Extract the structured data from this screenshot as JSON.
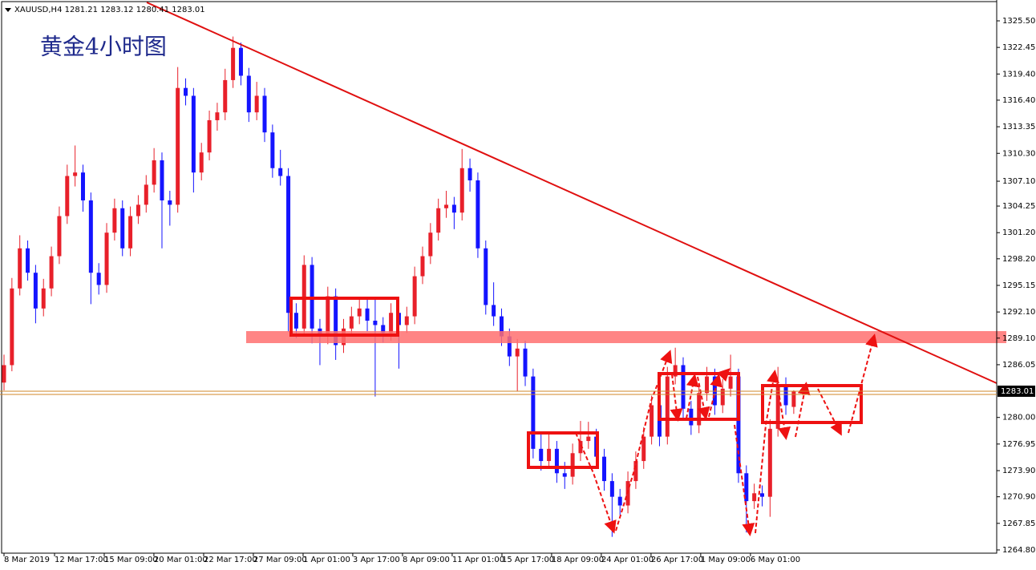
{
  "chart_data": {
    "type": "candlestick",
    "symbol": "XAUUSD,H4",
    "title": "黄金4小时图",
    "up_color": "#e8202a",
    "down_color": "#1414ff",
    "price_line_color": "#d0872a",
    "open": [
      1284.0,
      1286.0,
      1294.8,
      1299.4,
      1296.6,
      1292.5,
      1294.8,
      1298.5,
      1303.1,
      1307.7,
      1308.1,
      1304.9,
      1296.6,
      1295.2,
      1301.2,
      1304.0,
      1299.4,
      1303.1,
      1304.4,
      1306.7,
      1309.5,
      1304.9,
      1304.4,
      1317.8,
      1316.9,
      1308.1,
      1310.4,
      1314.1,
      1315.0,
      1318.7,
      1322.4,
      1319.2,
      1315.0,
      1316.9,
      1312.7,
      1308.6,
      1307.7,
      1292.0,
      1290.2,
      1297.5,
      1290.2,
      1289.3,
      1293.9,
      1288.3,
      1290.2,
      1291.6,
      1292.5,
      1291.1,
      1290.6,
      1289.7,
      1292.0,
      1290.6,
      1291.6,
      1296.2,
      1298.5,
      1301.2,
      1304.0,
      1304.4,
      1303.5,
      1308.6,
      1307.2,
      1299.4,
      1292.9,
      1291.6,
      1289.3,
      1287.0,
      1287.9,
      1284.7,
      1276.4,
      1275.0,
      1276.4,
      1273.6,
      1273.2,
      1275.9,
      1277.3,
      1277.8,
      1275.5,
      1272.7,
      1270.9,
      1269.9,
      1272.7,
      1275.0,
      1277.8,
      1281.4,
      1277.8,
      1284.7,
      1286.0,
      1281.0,
      1279.1,
      1282.8,
      1284.7,
      1281.4,
      1283.3,
      1284.7,
      1273.6,
      1270.4,
      1271.3,
      1270.9,
      1278.7,
      1283.7,
      1281.21
    ],
    "high": [
      1287.2,
      1296.0,
      1300.9,
      1300.3,
      1297.5,
      1295.9,
      1299.6,
      1304.2,
      1309.0,
      1311.2,
      1309.0,
      1305.8,
      1297.7,
      1302.3,
      1305.1,
      1304.9,
      1304.2,
      1305.5,
      1307.8,
      1310.9,
      1310.4,
      1306.0,
      1320.2,
      1318.9,
      1317.8,
      1311.5,
      1315.2,
      1316.1,
      1320.0,
      1323.7,
      1323.0,
      1320.1,
      1318.5,
      1317.8,
      1313.6,
      1310.7,
      1308.6,
      1293.1,
      1298.6,
      1298.4,
      1291.3,
      1295.0,
      1294.8,
      1291.3,
      1292.7,
      1293.6,
      1293.6,
      1293.8,
      1291.5,
      1293.1,
      1292.9,
      1292.7,
      1297.3,
      1299.6,
      1302.3,
      1305.1,
      1306.0,
      1305.3,
      1310.8,
      1309.7,
      1308.1,
      1300.3,
      1295.5,
      1292.5,
      1290.2,
      1289.0,
      1288.8,
      1285.6,
      1278.4,
      1278.3,
      1277.3,
      1274.9,
      1277.0,
      1279.6,
      1279.5,
      1278.7,
      1276.4,
      1273.6,
      1271.8,
      1273.8,
      1276.1,
      1278.9,
      1282.5,
      1282.3,
      1285.8,
      1288.0,
      1286.9,
      1281.9,
      1283.9,
      1285.8,
      1285.6,
      1284.4,
      1287.2,
      1285.6,
      1274.5,
      1272.4,
      1272.2,
      1279.8,
      1285.8,
      1284.6,
      1283.12
    ],
    "low": [
      1283.1,
      1285.3,
      1294.0,
      1295.7,
      1290.8,
      1291.6,
      1293.9,
      1297.6,
      1302.2,
      1306.5,
      1303.6,
      1293.0,
      1294.1,
      1294.3,
      1300.3,
      1298.5,
      1298.5,
      1302.2,
      1303.5,
      1305.8,
      1299.4,
      1302.0,
      1303.5,
      1315.8,
      1305.8,
      1307.2,
      1309.5,
      1312.9,
      1314.1,
      1317.8,
      1318.1,
      1313.9,
      1314.1,
      1311.6,
      1307.5,
      1306.6,
      1289.8,
      1289.1,
      1289.3,
      1288.5,
      1286.0,
      1288.4,
      1286.6,
      1287.4,
      1289.3,
      1290.7,
      1289.9,
      1282.4,
      1288.6,
      1288.8,
      1285.6,
      1289.7,
      1290.7,
      1295.3,
      1297.6,
      1300.3,
      1302.9,
      1301.6,
      1302.6,
      1305.9,
      1298.3,
      1291.8,
      1290.5,
      1288.2,
      1285.9,
      1283.0,
      1283.6,
      1275.3,
      1273.9,
      1274.1,
      1272.5,
      1271.8,
      1272.3,
      1275.0,
      1276.4,
      1274.4,
      1271.6,
      1266.3,
      1268.8,
      1269.0,
      1271.8,
      1274.1,
      1276.9,
      1276.7,
      1276.9,
      1283.8,
      1279.9,
      1278.0,
      1278.2,
      1281.9,
      1280.3,
      1280.5,
      1282.4,
      1272.5,
      1266.8,
      1269.5,
      1269.8,
      1268.6,
      1277.8,
      1280.3,
      1280.41
    ],
    "close": [
      1286.0,
      1294.8,
      1299.4,
      1296.6,
      1292.5,
      1294.8,
      1298.5,
      1303.1,
      1307.7,
      1308.1,
      1304.9,
      1296.6,
      1295.2,
      1301.2,
      1304.0,
      1299.4,
      1303.1,
      1304.4,
      1306.7,
      1309.5,
      1304.9,
      1304.4,
      1317.8,
      1316.9,
      1308.1,
      1310.4,
      1314.1,
      1315.0,
      1318.7,
      1322.4,
      1319.2,
      1315.0,
      1316.9,
      1312.7,
      1308.6,
      1307.7,
      1292.0,
      1290.2,
      1297.5,
      1290.2,
      1289.3,
      1293.9,
      1288.3,
      1290.2,
      1291.6,
      1292.5,
      1291.1,
      1290.6,
      1289.7,
      1292.0,
      1290.6,
      1291.6,
      1296.2,
      1298.5,
      1301.2,
      1304.0,
      1304.4,
      1303.5,
      1308.6,
      1307.2,
      1299.4,
      1292.9,
      1291.6,
      1289.3,
      1287.0,
      1287.9,
      1284.7,
      1276.4,
      1275.0,
      1276.4,
      1273.6,
      1273.2,
      1275.9,
      1277.3,
      1277.8,
      1275.5,
      1272.7,
      1270.9,
      1269.9,
      1272.7,
      1275.0,
      1277.8,
      1281.4,
      1277.8,
      1284.7,
      1286.0,
      1281.0,
      1279.1,
      1282.8,
      1284.7,
      1281.4,
      1283.3,
      1284.7,
      1273.6,
      1270.4,
      1271.3,
      1270.9,
      1278.7,
      1283.7,
      1281.4,
      1283.01
    ],
    "ylim": [
      1264.43,
      1327.89
    ],
    "yticks": [
      {
        "value": 1264.8,
        "label": "1264.80"
      },
      1267.85,
      {
        "value": 1270.9,
        "label": "1270.90"
      },
      {
        "value": 1273.9,
        "label": "1273.90"
      },
      1276.95,
      {
        "value": 1280,
        "label": "1280.00"
      },
      1286.05,
      {
        "value": 1289.1,
        "label": "1289.10"
      },
      {
        "value": 1292.1,
        "label": "1292.10"
      },
      1295.15,
      {
        "value": 1298.2,
        "label": "1298.20"
      },
      {
        "value": 1301.2,
        "label": "1301.20"
      },
      1304.25,
      {
        "value": 1307.1,
        "label": "1307.10"
      },
      {
        "value": 1310.3,
        "label": "1310.30"
      },
      1313.35,
      {
        "value": 1316.4,
        "label": "1316.40"
      },
      {
        "value": 1319.4,
        "label": "1319.40"
      },
      1322.45,
      {
        "value": 1325.5,
        "label": "1325.50"
      }
    ],
    "xlim": [
      0,
      125.7
    ],
    "xticks": [
      {
        "value": 0,
        "label": "8 Mar 2019"
      },
      {
        "value": 6.4,
        "label": "12 Mar 17:00"
      },
      {
        "value": 12.69,
        "label": "15 Mar 09:00"
      },
      {
        "value": 18.98,
        "label": "20 Mar 01:00"
      },
      {
        "value": 25.28,
        "label": "22 Mar 17:00"
      },
      {
        "value": 31.57,
        "label": "27 Mar 09:00"
      },
      {
        "value": 37.87,
        "label": "1 Apr 01:00"
      },
      {
        "value": 44.16,
        "label": "3 Apr 17:00"
      },
      {
        "value": 50.46,
        "label": "8 Apr 09:00"
      },
      {
        "value": 56.75,
        "label": "11 Apr 01:00"
      },
      {
        "value": 63.05,
        "label": "15 Apr 17:00"
      },
      {
        "value": 69.34,
        "label": "18 Apr 09:00"
      },
      {
        "value": 75.63,
        "label": "24 Apr 01:00"
      },
      {
        "value": 81.93,
        "label": "26 Apr 17:00"
      },
      {
        "value": 88.22,
        "label": "1 May 09:00"
      },
      {
        "value": 94.52,
        "label": "6 May 01:00"
      }
    ]
  }
}
